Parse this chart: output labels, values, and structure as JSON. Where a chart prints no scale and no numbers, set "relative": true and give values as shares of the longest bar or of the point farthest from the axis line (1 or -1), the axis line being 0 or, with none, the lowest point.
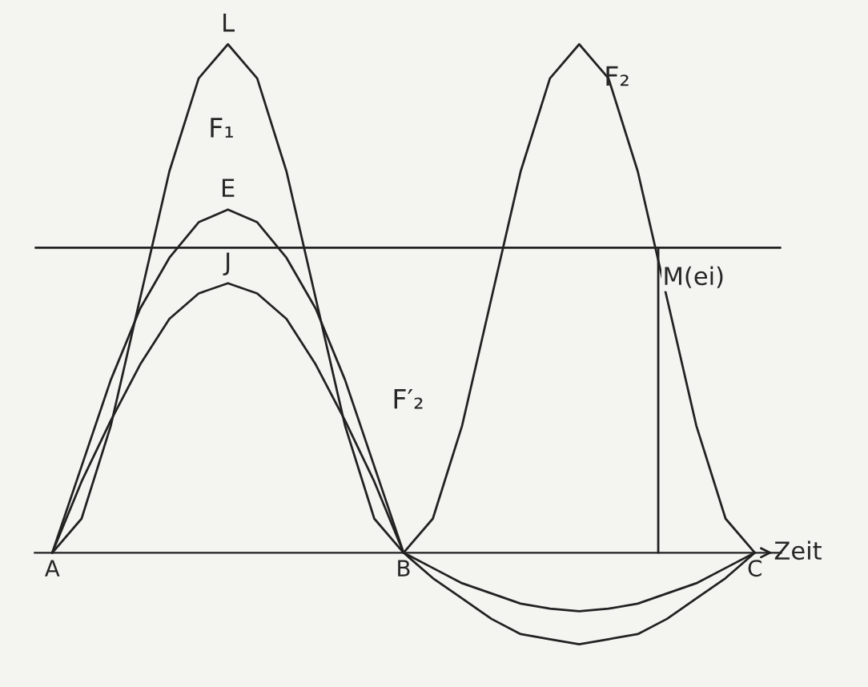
{
  "chart_data": {
    "type": "line",
    "relative": true,
    "xlabel": "Zeit",
    "categories": [
      "A",
      null,
      null,
      null,
      null,
      null,
      null,
      null,
      null,
      null,
      null,
      null,
      "B",
      null,
      null,
      null,
      null,
      null,
      null,
      null,
      null,
      null,
      null,
      null,
      "C"
    ],
    "series": [
      {
        "name": "L",
        "color": "#222222",
        "values": [
          0,
          0.067,
          0.25,
          0.5,
          0.75,
          0.933,
          1,
          0.933,
          0.75,
          0.5,
          0.25,
          0.067,
          0,
          0.067,
          0.25,
          0.5,
          0.75,
          0.933,
          1,
          0.933,
          0.75,
          0.5,
          0.25,
          0.067,
          0
        ]
      },
      {
        "name": "E",
        "color": "#222222",
        "values": [
          0,
          0.17,
          0.34,
          0.48,
          0.58,
          0.65,
          0.675,
          0.65,
          0.58,
          0.48,
          0.34,
          0.17,
          0,
          -0.05,
          -0.09,
          -0.13,
          -0.16,
          -0.17,
          -0.18,
          -0.17,
          -0.16,
          -0.13,
          -0.09,
          -0.05,
          0
        ]
      },
      {
        "name": "J",
        "color": "#222222",
        "values": [
          0,
          0.14,
          0.26,
          0.37,
          0.46,
          0.51,
          0.53,
          0.51,
          0.46,
          0.37,
          0.26,
          0.14,
          0,
          -0.03,
          -0.06,
          -0.08,
          -0.1,
          -0.11,
          -0.115,
          -0.11,
          -0.1,
          -0.08,
          -0.06,
          -0.03,
          0
        ]
      }
    ],
    "ref_lines": [
      {
        "axis": "y",
        "value": 0.6,
        "label": "M(ei)",
        "color": "#222222"
      }
    ],
    "annotations": [
      "F₁",
      "F₂",
      "F′₂"
    ],
    "legend": false,
    "marker": "none",
    "line_style": "solid"
  }
}
